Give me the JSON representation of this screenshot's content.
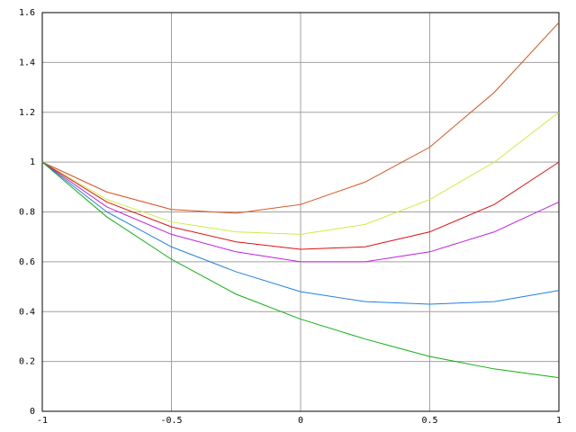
{
  "chart_data": {
    "type": "line",
    "x": [
      -1,
      -0.75,
      -0.5,
      -0.25,
      0,
      0.25,
      0.5,
      0.75,
      1
    ],
    "series": [
      {
        "color": "#d8501c",
        "values": [
          1,
          0.88,
          0.81,
          0.795,
          0.83,
          0.92,
          1.06,
          1.28,
          1.56
        ]
      },
      {
        "color": "#c8f040",
        "values": [
          1,
          0.85,
          0.76,
          0.72,
          0.71,
          0.75,
          0.85,
          1.0,
          1.2
        ]
      },
      {
        "color": "#e01010",
        "values": [
          1,
          0.84,
          0.74,
          0.68,
          0.65,
          0.66,
          0.72,
          0.83,
          1.0
        ]
      },
      {
        "color": "#c020e0",
        "values": [
          1,
          0.82,
          0.71,
          0.64,
          0.6,
          0.6,
          0.64,
          0.72,
          0.84
        ]
      },
      {
        "color": "#2080e0",
        "values": [
          1,
          0.8,
          0.66,
          0.56,
          0.48,
          0.44,
          0.43,
          0.44,
          0.485
        ]
      },
      {
        "color": "#10b010",
        "values": [
          1,
          0.78,
          0.61,
          0.47,
          0.37,
          0.29,
          0.22,
          0.17,
          0.135
        ]
      }
    ],
    "xlim": [
      -1,
      1
    ],
    "xticks": [
      -1,
      -0.5,
      0,
      0.5,
      1
    ],
    "ylim": [
      0,
      1.6
    ],
    "yticks": [
      0,
      0.2,
      0.4,
      0.6,
      0.8,
      1,
      1.2,
      1.4,
      1.6
    ],
    "grid": true
  }
}
